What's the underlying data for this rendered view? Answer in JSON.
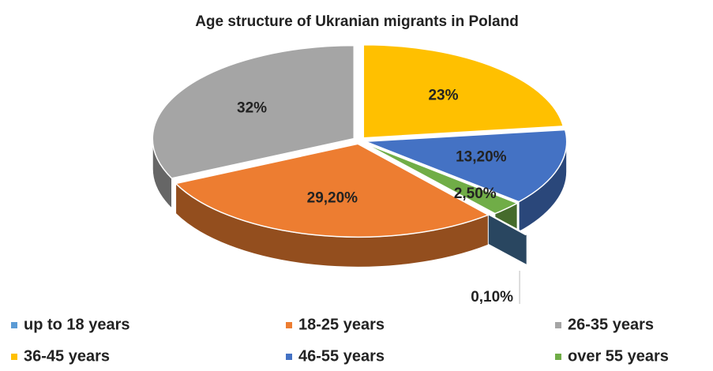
{
  "chart_data": {
    "type": "pie",
    "title": "Age structure of Ukranian migrants in Poland",
    "categories": [
      "up to 18 years",
      "18-25 years",
      "26-35 years",
      "36-45 years",
      "46-55 years",
      "over 55 years"
    ],
    "values": [
      0.1,
      29.2,
      32,
      23,
      13.2,
      2.5
    ],
    "value_labels": [
      "0,10%",
      "29,20%",
      "32%",
      "23%",
      "13,20%",
      "2,50%"
    ],
    "colors": [
      "#5b9bd5",
      "#ed7d31",
      "#a5a5a5",
      "#ffc000",
      "#4472c4",
      "#70ad47"
    ],
    "legend": "bottom"
  }
}
